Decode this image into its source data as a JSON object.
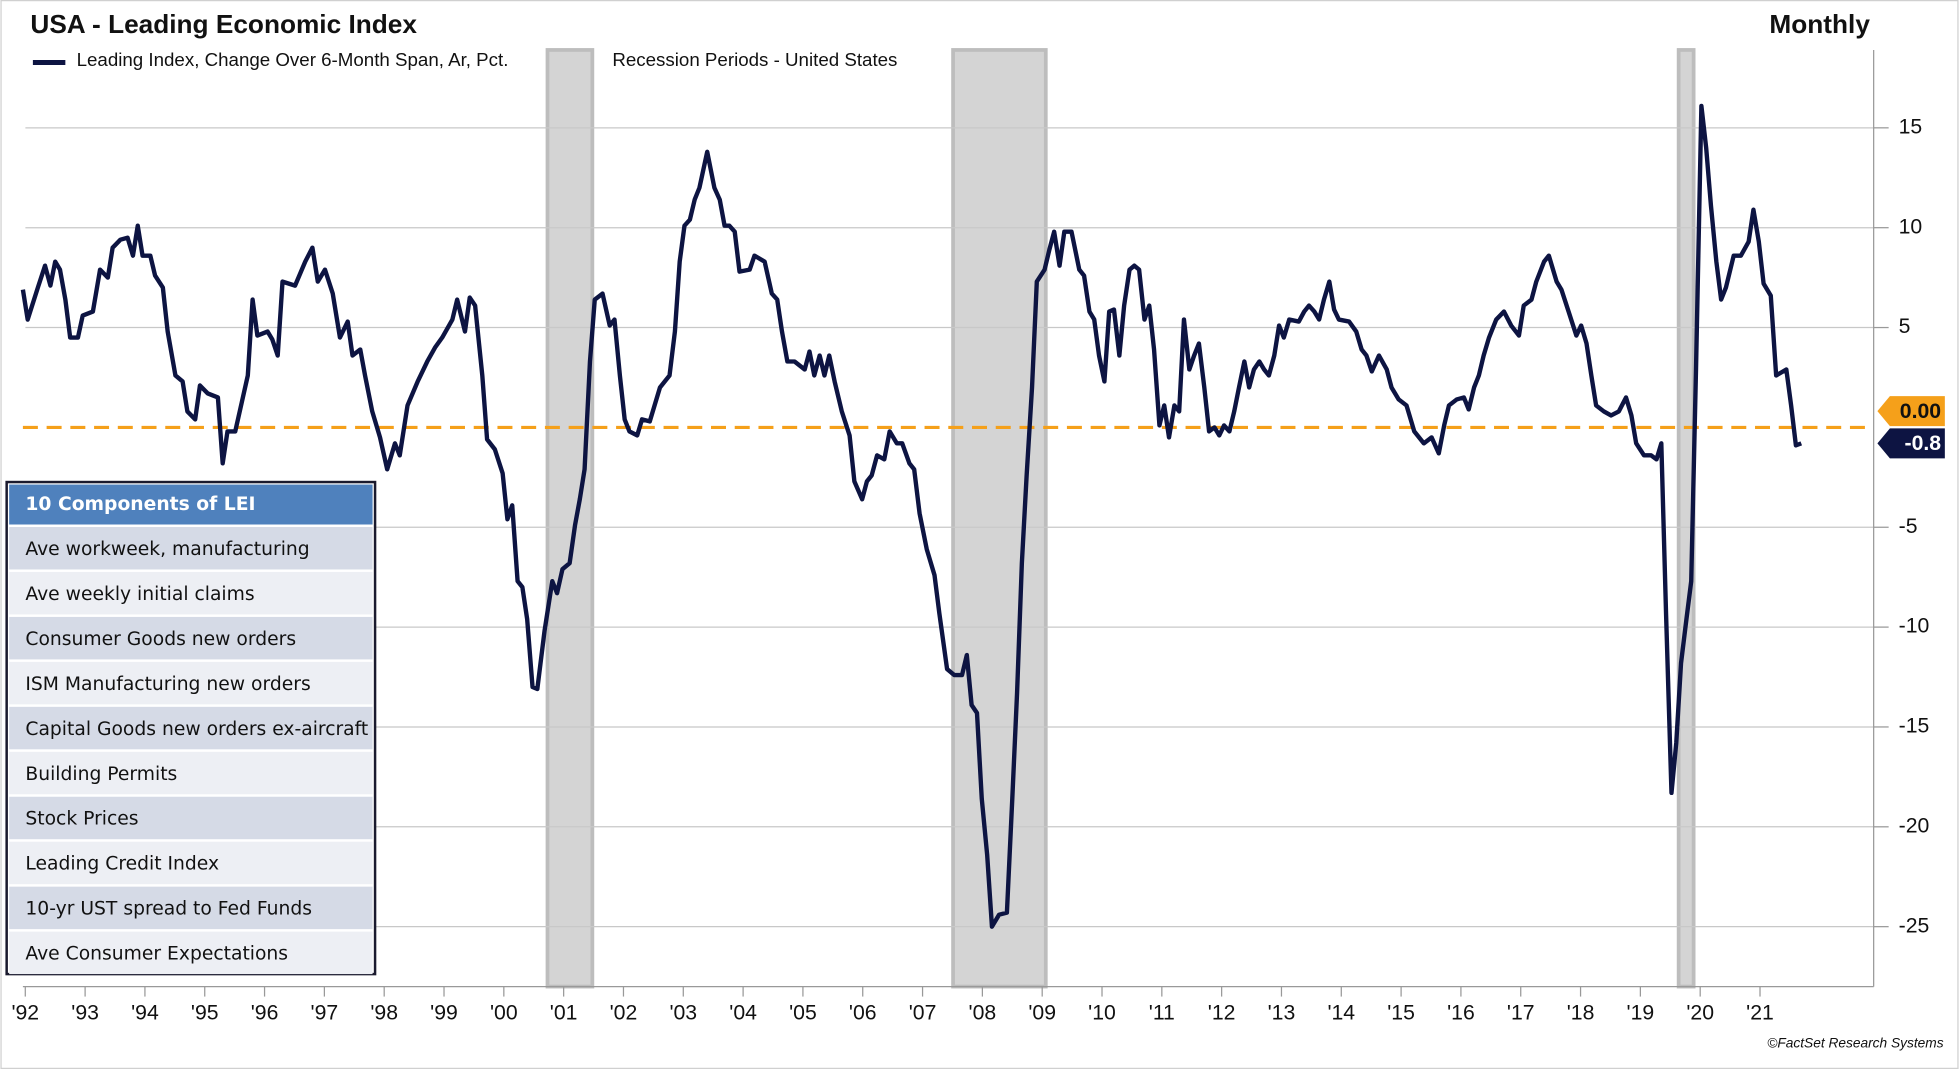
{
  "chart_data": {
    "type": "line",
    "title": "USA - Leading Economic Index",
    "subtitle": "Monthly",
    "source": "©FactSet Research Systems",
    "recession_label": "Recession Periods - United States",
    "recession_color": "#d4d4d4",
    "recessions": [
      [
        2001.23,
        2001.98
      ],
      [
        2008.01,
        2009.56
      ],
      [
        2020.14,
        2020.39
      ]
    ],
    "x": [
      1992.46,
      1992.54,
      1992.71,
      1992.83,
      1992.92,
      1993.0,
      1993.08,
      1993.17,
      1993.25,
      1993.38,
      1993.46,
      1993.63,
      1993.75,
      1993.88,
      1993.96,
      1994.09,
      1994.21,
      1994.3,
      1994.38,
      1994.46,
      1994.59,
      1994.67,
      1994.8,
      1994.88,
      1995.01,
      1995.13,
      1995.21,
      1995.34,
      1995.42,
      1995.55,
      1995.72,
      1995.8,
      1995.88,
      1996.01,
      1996.13,
      1996.22,
      1996.3,
      1996.38,
      1996.55,
      1996.63,
      1996.72,
      1996.8,
      1997.01,
      1997.18,
      1997.3,
      1997.39,
      1997.51,
      1997.64,
      1997.76,
      1997.89,
      1997.97,
      1998.1,
      1998.18,
      1998.3,
      1998.43,
      1998.55,
      1998.68,
      1998.76,
      1998.89,
      1999.06,
      1999.22,
      1999.35,
      1999.47,
      1999.64,
      1999.72,
      1999.85,
      1999.93,
      2000.02,
      2000.14,
      2000.22,
      2000.35,
      2000.48,
      2000.56,
      2000.64,
      2000.73,
      2000.81,
      2000.89,
      2000.98,
      2001.06,
      2001.18,
      2001.31,
      2001.39,
      2001.48,
      2001.6,
      2001.69,
      2001.77,
      2001.85,
      2001.94,
      2002.02,
      2002.15,
      2002.27,
      2002.35,
      2002.44,
      2002.52,
      2002.6,
      2002.73,
      2002.81,
      2002.94,
      2003.11,
      2003.27,
      2003.36,
      2003.44,
      2003.52,
      2003.61,
      2003.69,
      2003.77,
      2003.9,
      2004.02,
      2004.11,
      2004.19,
      2004.27,
      2004.36,
      2004.44,
      2004.61,
      2004.69,
      2004.86,
      2004.98,
      2005.07,
      2005.15,
      2005.24,
      2005.36,
      2005.53,
      2005.61,
      2005.69,
      2005.78,
      2005.86,
      2005.94,
      2006.03,
      2006.15,
      2006.28,
      2006.36,
      2006.49,
      2006.57,
      2006.65,
      2006.74,
      2006.86,
      2006.95,
      2007.07,
      2007.16,
      2007.28,
      2007.36,
      2007.45,
      2007.57,
      2007.7,
      2007.78,
      2007.91,
      2008.03,
      2008.16,
      2008.24,
      2008.32,
      2008.41,
      2008.49,
      2008.58,
      2008.66,
      2008.78,
      2008.91,
      2009.0,
      2009.08,
      2009.16,
      2009.24,
      2009.33,
      2009.41,
      2009.54,
      2009.62,
      2009.7,
      2009.79,
      2009.87,
      2009.99,
      2010.12,
      2010.2,
      2010.29,
      2010.37,
      2010.45,
      2010.54,
      2010.62,
      2010.7,
      2010.79,
      2010.87,
      2010.96,
      2011.04,
      2011.12,
      2011.21,
      2011.29,
      2011.37,
      2011.46,
      2011.54,
      2011.62,
      2011.71,
      2011.79,
      2011.87,
      2011.96,
      2012.04,
      2012.12,
      2012.21,
      2012.29,
      2012.38,
      2012.46,
      2012.54,
      2012.63,
      2012.71,
      2012.79,
      2012.88,
      2012.96,
      2013.04,
      2013.13,
      2013.21,
      2013.29,
      2013.38,
      2013.46,
      2013.54,
      2013.63,
      2013.79,
      2013.88,
      2013.96,
      2014.05,
      2014.13,
      2014.21,
      2014.3,
      2014.38,
      2014.46,
      2014.63,
      2014.75,
      2014.84,
      2014.92,
      2015.01,
      2015.13,
      2015.26,
      2015.34,
      2015.46,
      2015.59,
      2015.72,
      2015.88,
      2016.01,
      2016.13,
      2016.22,
      2016.3,
      2016.43,
      2016.55,
      2016.63,
      2016.72,
      2016.8,
      2016.88,
      2016.97,
      2017.09,
      2017.22,
      2017.34,
      2017.47,
      2017.55,
      2017.68,
      2017.76,
      2017.89,
      2017.97,
      2018.1,
      2018.18,
      2018.3,
      2018.43,
      2018.51,
      2018.6,
      2018.68,
      2018.76,
      2018.89,
      2019.01,
      2019.14,
      2019.26,
      2019.35,
      2019.43,
      2019.56,
      2019.68,
      2019.77,
      2019.85,
      2019.93,
      2020.02,
      2020.1,
      2020.18,
      2020.27,
      2020.35,
      2020.43,
      2020.52,
      2020.6,
      2020.68,
      2020.77,
      2020.85,
      2020.93,
      2021.06,
      2021.18,
      2021.31,
      2021.39,
      2021.48,
      2021.56,
      2021.68,
      2021.77,
      2021.94,
      2022.02,
      2022.1,
      2022.19
    ],
    "series": [
      {
        "name": "Leading Index, Change Over 6-Month Span, Ar, Pct.",
        "color": "#0d1442",
        "values": [
          6.9,
          5.4,
          7.0,
          8.1,
          7.1,
          8.3,
          7.9,
          6.4,
          4.5,
          4.5,
          5.6,
          5.8,
          7.9,
          7.5,
          9.0,
          9.4,
          9.5,
          8.6,
          10.1,
          8.6,
          8.6,
          7.6,
          7.0,
          4.8,
          2.6,
          2.3,
          0.8,
          0.4,
          2.1,
          1.7,
          1.5,
          -1.8,
          -0.2,
          -0.2,
          1.4,
          2.6,
          6.4,
          4.6,
          4.8,
          4.4,
          3.6,
          7.3,
          7.1,
          8.3,
          9.0,
          7.3,
          7.9,
          6.7,
          4.5,
          5.3,
          3.6,
          3.9,
          2.6,
          0.8,
          -0.5,
          -2.1,
          -0.8,
          -1.4,
          1.1,
          2.3,
          3.3,
          4.0,
          4.5,
          5.4,
          6.4,
          4.8,
          6.5,
          6.1,
          2.6,
          -0.6,
          -1.1,
          -2.3,
          -4.6,
          -3.9,
          -7.7,
          -8.0,
          -9.6,
          -13.0,
          -13.1,
          -10.2,
          -7.7,
          -8.3,
          -7.1,
          -6.8,
          -4.9,
          -3.6,
          -2.1,
          3.3,
          6.4,
          6.7,
          5.1,
          5.4,
          2.6,
          0.4,
          -0.2,
          -0.4,
          0.4,
          0.3,
          2.0,
          2.6,
          4.8,
          8.3,
          10.1,
          10.4,
          11.4,
          12.0,
          13.8,
          12.0,
          11.4,
          10.1,
          10.1,
          9.8,
          7.8,
          7.9,
          8.6,
          8.3,
          6.7,
          6.4,
          4.8,
          3.3,
          3.3,
          2.9,
          3.8,
          2.6,
          3.6,
          2.6,
          3.6,
          2.3,
          0.8,
          -0.4,
          -2.7,
          -3.6,
          -2.7,
          -2.4,
          -1.4,
          -1.6,
          -0.2,
          -0.8,
          -0.8,
          -1.8,
          -2.1,
          -4.3,
          -6.1,
          -7.4,
          -9.3,
          -12.1,
          -12.4,
          -12.4,
          -11.4,
          -13.9,
          -14.3,
          -18.6,
          -21.4,
          -25.0,
          -24.4,
          -24.3,
          -18.6,
          -13.3,
          -6.8,
          -2.4,
          2.0,
          7.3,
          7.9,
          8.9,
          9.8,
          8.1,
          9.8,
          9.8,
          7.9,
          7.6,
          5.8,
          5.4,
          3.6,
          2.3,
          5.8,
          5.9,
          3.6,
          6.1,
          7.9,
          8.1,
          7.9,
          5.4,
          6.1,
          3.9,
          0.1,
          1.1,
          -0.5,
          1.1,
          0.8,
          5.4,
          2.9,
          3.6,
          4.2,
          2.0,
          -0.2,
          0,
          -0.4,
          0.1,
          -0.2,
          0.8,
          2.0,
          3.3,
          2.0,
          2.9,
          3.3,
          2.9,
          2.6,
          3.6,
          5.1,
          4.5,
          5.4,
          5.3,
          5.8,
          6.1,
          5.8,
          5.4,
          6.4,
          7.3,
          5.9,
          5.4,
          5.3,
          4.8,
          3.9,
          3.6,
          2.8,
          3.6,
          2.9,
          2.0,
          1.4,
          1.1,
          -0.2,
          -0.8,
          -0.5,
          -1.3,
          0.1,
          1.1,
          1.4,
          1.5,
          0.9,
          2.0,
          2.6,
          3.6,
          4.5,
          5.4,
          5.8,
          5.1,
          4.6,
          6.1,
          6.4,
          7.3,
          8.3,
          8.6,
          7.3,
          6.9,
          5.8,
          4.6,
          5.1,
          4.2,
          2.6,
          1.1,
          0.8,
          0.6,
          0.8,
          1.5,
          0.6,
          -0.8,
          -1.4,
          -1.4,
          -1.6,
          -0.8,
          -9.4,
          -18.3,
          -15.8,
          -11.8,
          -9.6,
          -7.7,
          2.9,
          16.1,
          14.0,
          11.1,
          8.3,
          6.4,
          7.0,
          8.6,
          8.6,
          9.3,
          10.9,
          9.3,
          7.2,
          6.6,
          2.6,
          2.9,
          1.1,
          -0.9,
          -0.8
        ]
      }
    ],
    "annotations": [
      {
        "value": 0,
        "label": "0.00",
        "color": "#f5a01a"
      },
      {
        "value": -0.8,
        "label": "-0.8",
        "color": "#0d1442"
      }
    ],
    "xlim": [
      1992.46,
      2023.4
    ],
    "ylim": [
      -28,
      18.9
    ],
    "yticks": [
      -25,
      -20,
      -15,
      -10,
      -5,
      5,
      10,
      15
    ],
    "xticks": [
      {
        "value": 1992.5,
        "label": "'92"
      },
      {
        "value": 1993.5,
        "label": "'93"
      },
      {
        "value": 1994.5,
        "label": "'94"
      },
      {
        "value": 1995.5,
        "label": "'95"
      },
      {
        "value": 1996.5,
        "label": "'96"
      },
      {
        "value": 1997.5,
        "label": "'97"
      },
      {
        "value": 1998.5,
        "label": "'98"
      },
      {
        "value": 1999.5,
        "label": "'99"
      },
      {
        "value": 2000.5,
        "label": "'00"
      },
      {
        "value": 2001.5,
        "label": "'01"
      },
      {
        "value": 2002.5,
        "label": "'02"
      },
      {
        "value": 2003.5,
        "label": "'03"
      },
      {
        "value": 2004.5,
        "label": "'04"
      },
      {
        "value": 2005.5,
        "label": "'05"
      },
      {
        "value": 2006.5,
        "label": "'06"
      },
      {
        "value": 2007.5,
        "label": "'07"
      },
      {
        "value": 2008.5,
        "label": "'08"
      },
      {
        "value": 2009.5,
        "label": "'09"
      },
      {
        "value": 2010.5,
        "label": "'10"
      },
      {
        "value": 2011.5,
        "label": "'11"
      },
      {
        "value": 2012.5,
        "label": "'12"
      },
      {
        "value": 2013.5,
        "label": "'13"
      },
      {
        "value": 2014.5,
        "label": "'14"
      },
      {
        "value": 2015.5,
        "label": "'15"
      },
      {
        "value": 2016.5,
        "label": "'16"
      },
      {
        "value": 2017.5,
        "label": "'17"
      },
      {
        "value": 2018.5,
        "label": "'18"
      },
      {
        "value": 2019.5,
        "label": "'19"
      },
      {
        "value": 2020.5,
        "label": "'20"
      },
      {
        "value": 2021.5,
        "label": "'21"
      }
    ],
    "grid": true
  },
  "components": {
    "header": "10 Components of LEI",
    "rows": [
      "Ave workweek, manufacturing",
      "Ave weekly initial claims",
      "Consumer Goods new orders",
      "ISM Manufacturing new orders",
      "Capital Goods new orders ex-aircraft",
      "Building Permits",
      "Stock Prices",
      "Leading Credit Index",
      "10-yr UST spread to Fed Funds",
      "Ave Consumer Expectations"
    ]
  }
}
